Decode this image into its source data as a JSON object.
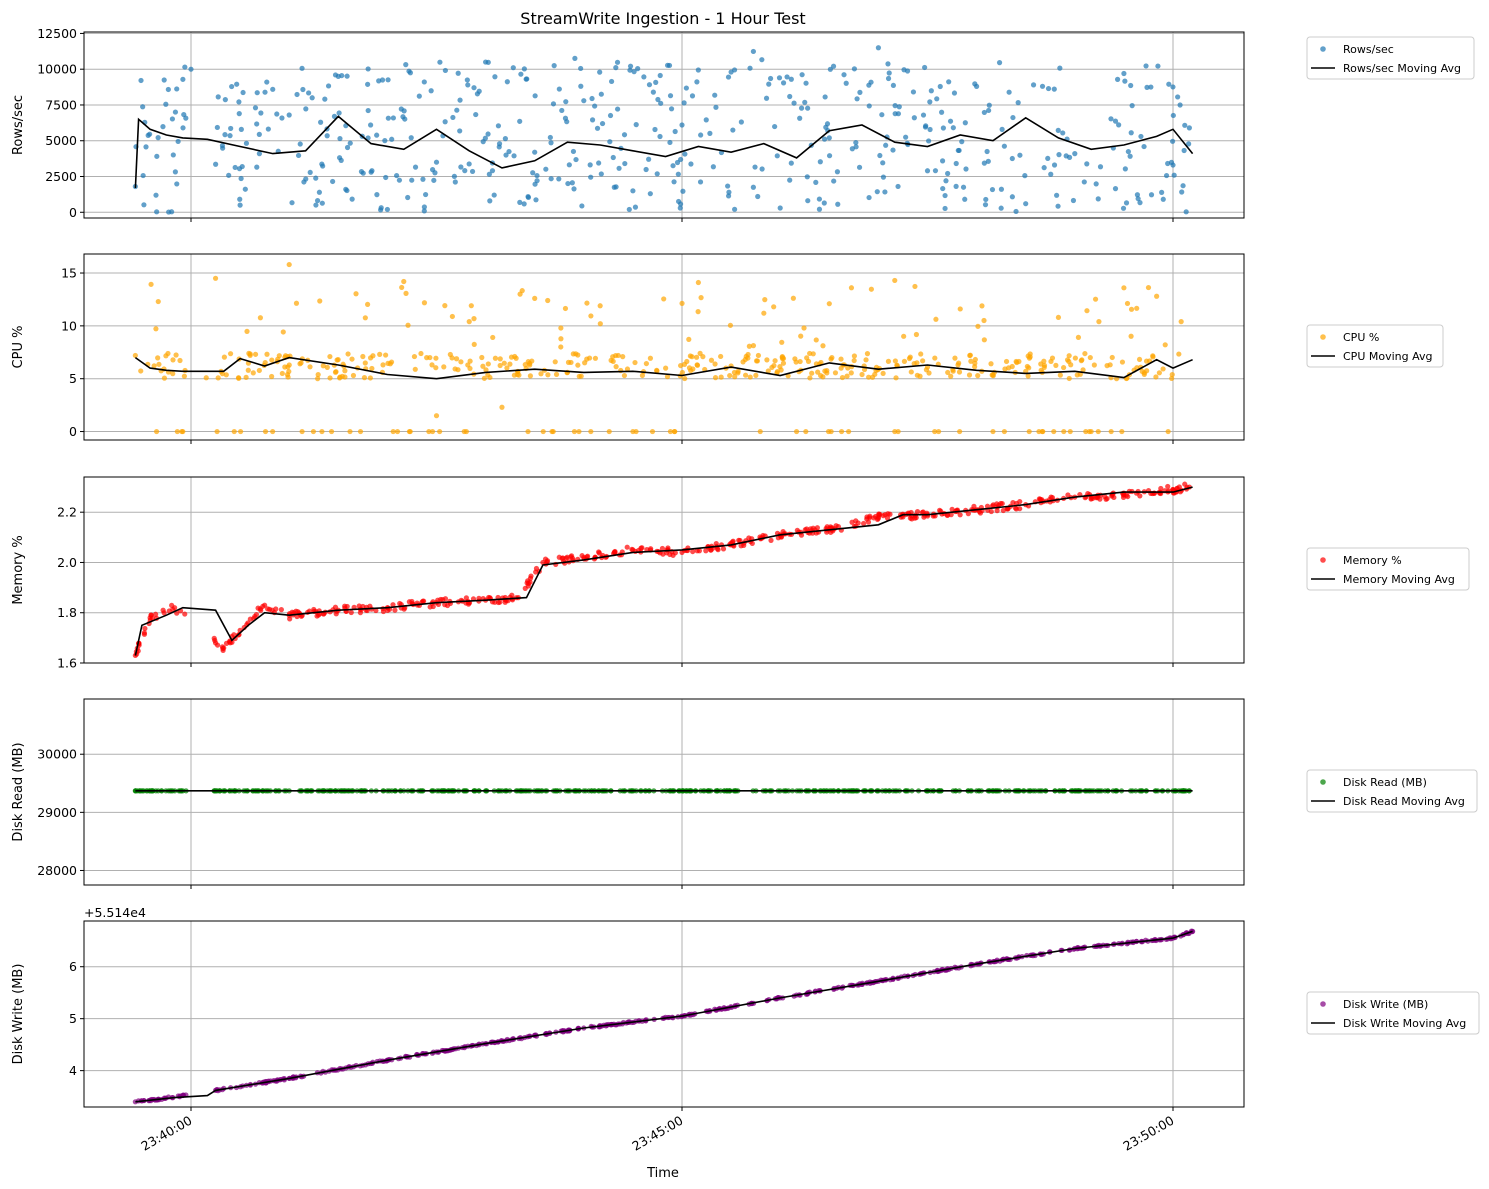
{
  "title": "StreamWrite Ingestion - 1 Hour Test",
  "xlabel": "Time",
  "x_ticks": [
    "23:40:00",
    "23:45:00",
    "23:50:00"
  ],
  "colors": {
    "rows": "#1f77b4",
    "cpu": "#ffa500",
    "memory": "#ff0000",
    "disk_read": "#008000",
    "disk_write": "#800080",
    "moving_avg": "#000000",
    "grid": "#b0b0b0"
  },
  "chart_data": [
    {
      "type": "scatter",
      "key": "rows",
      "ylabel": "Rows/sec",
      "ylim": [
        -400,
        12600
      ],
      "y_ticks": [
        "0",
        "2500",
        "5000",
        "7500",
        "10000",
        "12500"
      ],
      "y_tick_values": [
        0,
        2500,
        5000,
        7500,
        10000,
        12500
      ],
      "offset_label": "",
      "series": [
        {
          "name": "Rows/sec",
          "kind": "scatter",
          "color": "#1f77b4",
          "x": [
            "23:39:26",
            "23:40:00",
            "23:40:30",
            "23:41:00",
            "23:41:30",
            "23:42:00",
            "23:42:30",
            "23:43:00",
            "23:43:30",
            "23:44:00",
            "23:44:30",
            "23:45:00",
            "23:45:30",
            "23:46:00",
            "23:46:30",
            "23:47:00",
            "23:47:30",
            "23:48:00",
            "23:48:30",
            "23:49:00",
            "23:49:30",
            "23:50:00",
            "23:50:10"
          ],
          "y": [
            1800,
            10000,
            500,
            6800,
            9500,
            200,
            3500,
            10500,
            4200,
            7800,
            1500,
            6100,
            9800,
            300,
            5200,
            11500,
            2900,
            8800,
            600,
            4100,
            9700,
            3300,
            5900
          ]
        },
        {
          "name": "Rows/sec Moving Avg",
          "kind": "line",
          "color": "#000000",
          "x": [
            "23:39:26",
            "23:39:28",
            "23:39:35",
            "23:39:45",
            "23:39:55",
            "23:40:10",
            "23:40:30",
            "23:40:50",
            "23:41:10",
            "23:41:30",
            "23:41:50",
            "23:42:10",
            "23:42:30",
            "23:42:50",
            "23:43:10",
            "23:43:30",
            "23:43:50",
            "23:44:10",
            "23:44:30",
            "23:44:50",
            "23:45:10",
            "23:45:30",
            "23:45:50",
            "23:46:10",
            "23:46:30",
            "23:46:50",
            "23:47:10",
            "23:47:30",
            "23:47:50",
            "23:48:10",
            "23:48:30",
            "23:48:50",
            "23:49:10",
            "23:49:30",
            "23:49:50",
            "23:50:00",
            "23:50:12"
          ],
          "y": [
            1700,
            6500,
            5800,
            5400,
            5200,
            5100,
            4600,
            4100,
            4300,
            6700,
            4800,
            4400,
            5800,
            4300,
            3100,
            3600,
            4900,
            4700,
            4300,
            3900,
            4600,
            4200,
            4800,
            3800,
            5700,
            6100,
            4900,
            4600,
            5400,
            5000,
            6600,
            5200,
            4400,
            4700,
            5300,
            5800,
            4100
          ]
        }
      ]
    },
    {
      "type": "scatter",
      "key": "cpu",
      "ylabel": "CPU %",
      "ylim": [
        -0.8,
        16.8
      ],
      "y_ticks": [
        "0",
        "5",
        "10",
        "15"
      ],
      "y_tick_values": [
        0,
        5,
        10,
        15
      ],
      "offset_label": "",
      "series": [
        {
          "name": "CPU %",
          "kind": "scatter",
          "color": "#ffa500",
          "x": [
            "23:39:26",
            "23:39:40",
            "23:39:55",
            "23:40:15",
            "23:40:35",
            "23:41:00",
            "23:41:20",
            "23:41:45",
            "23:42:10",
            "23:42:30",
            "23:42:50",
            "23:43:10",
            "23:43:30",
            "23:43:50",
            "23:44:10",
            "23:44:30",
            "23:44:50",
            "23:45:10",
            "23:45:30",
            "23:45:50",
            "23:46:10",
            "23:46:30",
            "23:46:50",
            "23:47:10",
            "23:47:30",
            "23:47:50",
            "23:48:10",
            "23:48:30",
            "23:48:50",
            "23:49:10",
            "23:49:30",
            "23:49:50",
            "23:50:05"
          ],
          "y": [
            7.2,
            12.3,
            0.0,
            14.5,
            5.8,
            15.8,
            0.0,
            7.1,
            14.2,
            1.5,
            10.4,
            2.3,
            12.6,
            5.6,
            11.9,
            0.0,
            6.0,
            14.1,
            6.2,
            11.2,
            0.0,
            12.1,
            5.4,
            14.3,
            6.1,
            11.6,
            0.0,
            5.7,
            10.8,
            0.0,
            13.6,
            12.8,
            10.4
          ]
        },
        {
          "name": "CPU Moving Avg",
          "kind": "line",
          "color": "#000000",
          "x": [
            "23:39:26",
            "23:39:35",
            "23:39:45",
            "23:39:55",
            "23:40:20",
            "23:40:30",
            "23:40:45",
            "23:41:00",
            "23:41:30",
            "23:42:00",
            "23:42:30",
            "23:43:00",
            "23:43:30",
            "23:44:00",
            "23:44:30",
            "23:45:00",
            "23:45:30",
            "23:46:00",
            "23:46:30",
            "23:47:00",
            "23:47:30",
            "23:48:00",
            "23:48:30",
            "23:49:00",
            "23:49:30",
            "23:49:50",
            "23:50:00",
            "23:50:12"
          ],
          "y": [
            7.0,
            6.0,
            5.8,
            5.7,
            5.7,
            6.9,
            6.2,
            7.0,
            6.3,
            5.4,
            5.0,
            5.6,
            5.9,
            5.6,
            5.7,
            5.3,
            6.1,
            5.3,
            6.5,
            5.9,
            6.3,
            5.8,
            5.5,
            5.7,
            5.1,
            6.8,
            6.0,
            6.8
          ]
        }
      ]
    },
    {
      "type": "scatter",
      "key": "memory",
      "ylabel": "Memory %",
      "ylim": [
        1.6,
        2.34
      ],
      "y_ticks": [
        "1.6",
        "1.8",
        "2.0",
        "2.2"
      ],
      "y_tick_values": [
        1.6,
        1.8,
        2.0,
        2.2
      ],
      "offset_label": "",
      "series": [
        {
          "name": "Memory %",
          "kind": "scatter",
          "color": "#ff0000",
          "x": [
            "23:39:26",
            "23:39:35",
            "23:39:50",
            "23:40:15",
            "23:40:20",
            "23:40:30",
            "23:40:45",
            "23:41:00",
            "23:41:30",
            "23:42:00",
            "23:42:30",
            "23:43:00",
            "23:43:20",
            "23:43:35",
            "23:44:00",
            "23:44:30",
            "23:45:00",
            "23:45:30",
            "23:46:00",
            "23:46:30",
            "23:47:00",
            "23:47:30",
            "23:48:00",
            "23:48:30",
            "23:49:00",
            "23:49:30",
            "23:50:00",
            "23:50:10"
          ],
          "y": [
            1.63,
            1.78,
            1.82,
            1.68,
            1.66,
            1.73,
            1.83,
            1.79,
            1.81,
            1.82,
            1.84,
            1.85,
            1.86,
            2.0,
            2.02,
            2.05,
            2.04,
            2.07,
            2.11,
            2.13,
            2.18,
            2.19,
            2.21,
            2.23,
            2.26,
            2.27,
            2.29,
            2.3
          ]
        },
        {
          "name": "Memory Moving Avg",
          "kind": "line",
          "color": "#000000",
          "x": [
            "23:39:26",
            "23:39:30",
            "23:39:45",
            "23:39:55",
            "23:40:15",
            "23:40:25",
            "23:40:35",
            "23:40:45",
            "23:41:00",
            "23:41:30",
            "23:42:00",
            "23:42:30",
            "23:43:00",
            "23:43:25",
            "23:43:35",
            "23:44:00",
            "23:44:30",
            "23:45:00",
            "23:45:30",
            "23:46:00",
            "23:46:30",
            "23:47:00",
            "23:47:15",
            "23:47:30",
            "23:48:00",
            "23:48:30",
            "23:49:00",
            "23:49:30",
            "23:50:00",
            "23:50:12"
          ],
          "y": [
            1.63,
            1.75,
            1.79,
            1.82,
            1.81,
            1.69,
            1.75,
            1.8,
            1.79,
            1.81,
            1.82,
            1.84,
            1.85,
            1.86,
            1.99,
            2.01,
            2.04,
            2.05,
            2.07,
            2.11,
            2.13,
            2.15,
            2.19,
            2.19,
            2.21,
            2.23,
            2.26,
            2.28,
            2.28,
            2.3
          ]
        }
      ]
    },
    {
      "type": "scatter",
      "key": "disk_read",
      "ylabel": "Disk Read (MB)",
      "ylim": [
        27750,
        30950
      ],
      "y_ticks": [
        "28000",
        "29000",
        "30000"
      ],
      "y_tick_values": [
        28000,
        29000,
        30000
      ],
      "offset_label": "",
      "series": [
        {
          "name": "Disk Read (MB)",
          "kind": "scatter",
          "color": "#008000",
          "x": [
            "23:39:26",
            "23:39:55",
            "23:40:15",
            "23:41:00",
            "23:42:00",
            "23:43:00",
            "23:44:00",
            "23:45:00",
            "23:46:00",
            "23:47:00",
            "23:48:00",
            "23:49:00",
            "23:50:00",
            "23:50:10"
          ],
          "y": [
            29370,
            29370,
            29370,
            29370,
            29370,
            29370,
            29370,
            29370,
            29370,
            29370,
            29370,
            29370,
            29370,
            29370
          ]
        },
        {
          "name": "Disk Read Moving Avg",
          "kind": "line",
          "color": "#000000",
          "x": [
            "23:39:26",
            "23:50:12"
          ],
          "y": [
            29370,
            29370
          ]
        }
      ]
    },
    {
      "type": "scatter",
      "key": "disk_write",
      "ylabel": "Disk Write (MB)",
      "ylim": [
        3.3,
        6.88
      ],
      "y_ticks": [
        "4",
        "5",
        "6"
      ],
      "y_tick_values": [
        4,
        5,
        6
      ],
      "offset_label": "+5.514e4",
      "series": [
        {
          "name": "Disk Write (MB)",
          "kind": "scatter",
          "color": "#800080",
          "x": [
            "23:39:26",
            "23:39:40",
            "23:39:55",
            "23:40:15",
            "23:41:00",
            "23:42:00",
            "23:43:00",
            "23:44:00",
            "23:45:00",
            "23:46:00",
            "23:47:00",
            "23:48:00",
            "23:49:00",
            "23:50:00",
            "23:50:12"
          ],
          "y": [
            3.4,
            3.45,
            3.52,
            3.62,
            3.85,
            4.2,
            4.52,
            4.82,
            5.05,
            5.4,
            5.72,
            6.05,
            6.35,
            6.55,
            6.68
          ]
        },
        {
          "name": "Disk Write Moving Avg",
          "kind": "line",
          "color": "#000000",
          "x": [
            "23:39:26",
            "23:39:50",
            "23:40:10",
            "23:40:15",
            "23:41:00",
            "23:42:00",
            "23:43:00",
            "23:44:00",
            "23:45:00",
            "23:46:00",
            "23:47:00",
            "23:48:00",
            "23:49:00",
            "23:50:00",
            "23:50:12"
          ],
          "y": [
            3.4,
            3.48,
            3.52,
            3.62,
            3.85,
            4.2,
            4.52,
            4.82,
            5.05,
            5.4,
            5.72,
            6.05,
            6.35,
            6.55,
            6.68
          ]
        }
      ]
    }
  ]
}
